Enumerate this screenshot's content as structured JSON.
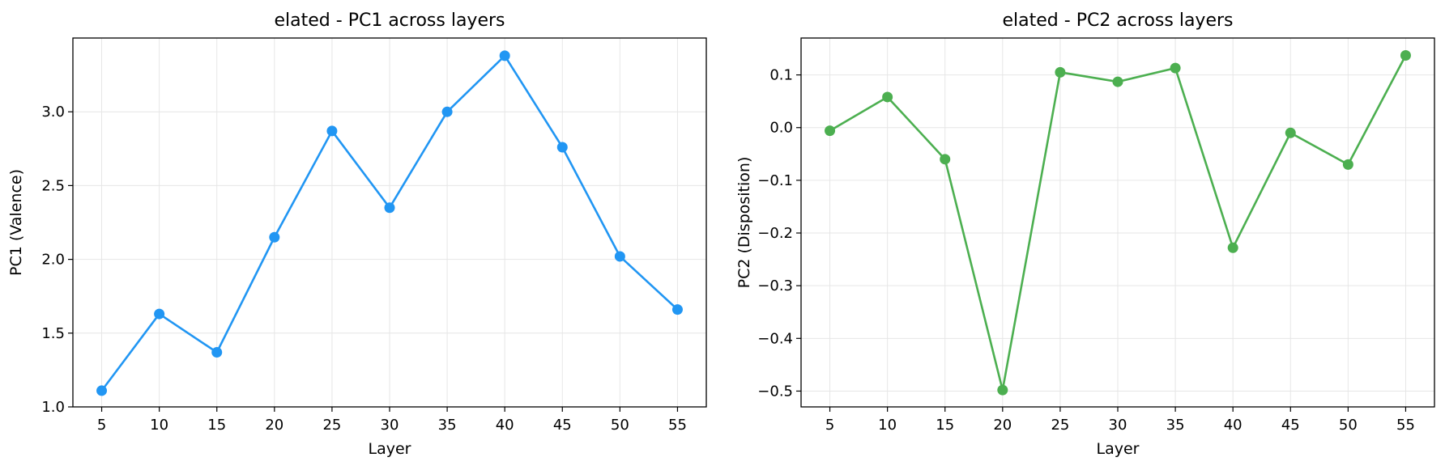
{
  "chart_data": [
    {
      "type": "line",
      "title": "elated - PC1 across layers",
      "xlabel": "Layer",
      "ylabel": "PC1 (Valence)",
      "x": [
        5,
        10,
        15,
        20,
        25,
        30,
        35,
        40,
        45,
        50,
        55
      ],
      "xticks": [
        "5",
        "10",
        "15",
        "20",
        "25",
        "30",
        "35",
        "40",
        "45",
        "50",
        "55"
      ],
      "yticks": [
        "1.0",
        "1.5",
        "2.0",
        "2.5",
        "3.0"
      ],
      "ytick_values": [
        1.0,
        1.5,
        2.0,
        2.5,
        3.0
      ],
      "xlim": [
        2.5,
        57.5
      ],
      "ylim": [
        1.0,
        3.5
      ],
      "grid": true,
      "series": [
        {
          "values": [
            1.11,
            1.63,
            1.37,
            2.15,
            2.87,
            2.35,
            3.0,
            3.38,
            2.76,
            2.02,
            1.66
          ],
          "color": "#2196F3"
        }
      ]
    },
    {
      "type": "line",
      "title": "elated - PC2 across layers",
      "xlabel": "Layer",
      "ylabel": "PC2 (Disposition)",
      "x": [
        5,
        10,
        15,
        20,
        25,
        30,
        35,
        40,
        45,
        50,
        55
      ],
      "xticks": [
        "5",
        "10",
        "15",
        "20",
        "25",
        "30",
        "35",
        "40",
        "45",
        "50",
        "55"
      ],
      "yticks": [
        "−0.5",
        "−0.4",
        "−0.3",
        "−0.2",
        "−0.1",
        "0.0",
        "0.1"
      ],
      "ytick_values": [
        -0.5,
        -0.4,
        -0.3,
        -0.2,
        -0.1,
        0.0,
        0.1
      ],
      "xlim": [
        2.5,
        57.5
      ],
      "ylim": [
        -0.53,
        0.17
      ],
      "grid": true,
      "series": [
        {
          "values": [
            -0.006,
            0.058,
            -0.06,
            -0.498,
            0.105,
            0.087,
            0.113,
            -0.228,
            -0.01,
            -0.07,
            0.137
          ],
          "color": "#4CAF50"
        }
      ]
    }
  ]
}
